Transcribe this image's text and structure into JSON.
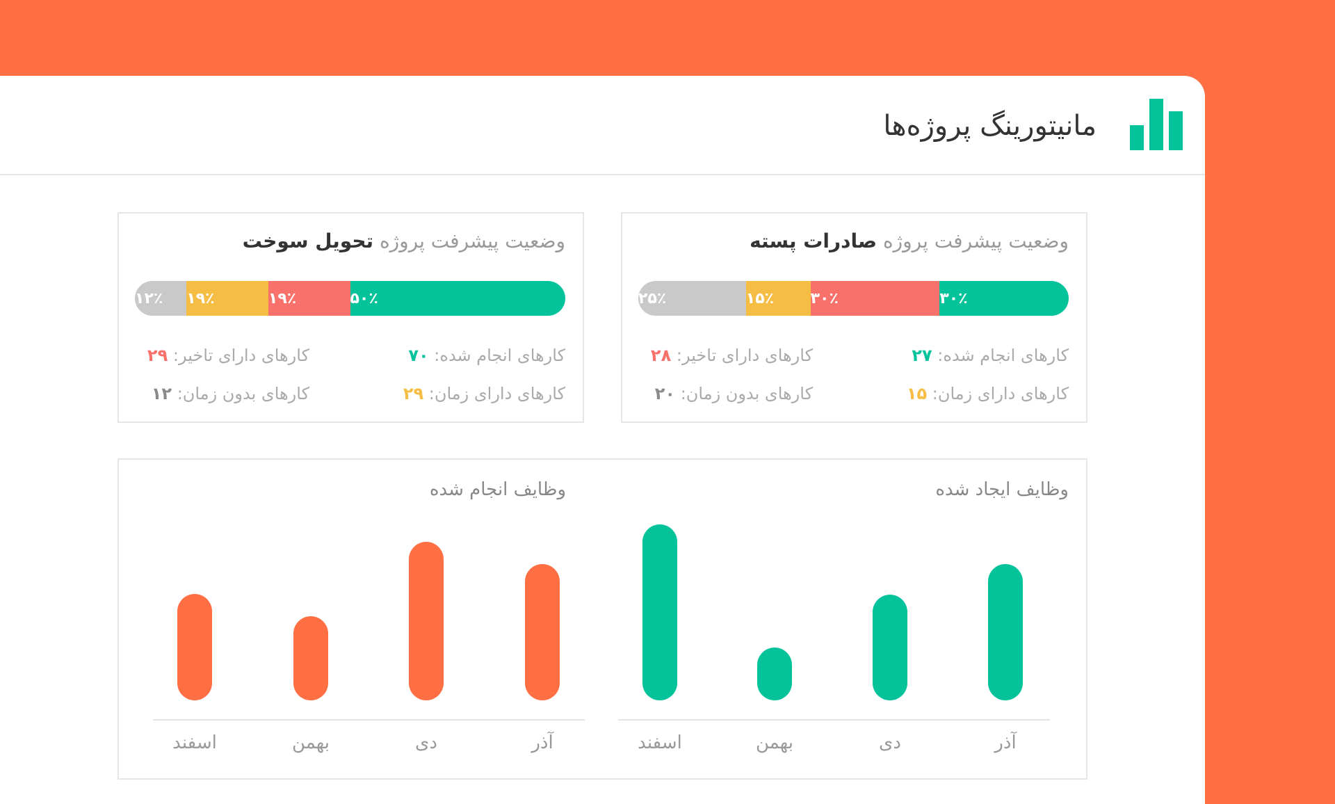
{
  "header": {
    "title": "مانیتورینگ پروژه‌ها"
  },
  "projects": [
    {
      "title_prefix": "وضعیت پیشرفت پروژه",
      "name": "صادرات پسته",
      "progress": {
        "values": [
          30,
          30,
          15,
          25
        ],
        "value_labels": [
          "۳۰٪",
          "۳۰٪",
          "۱۵٪",
          "۲۵٪"
        ],
        "colors": [
          "#04c39a",
          "#f8716a",
          "#f5bd44",
          "#c9c9c9"
        ]
      },
      "stats": [
        {
          "label": "کارهای انجام شده:",
          "value": "۲۷",
          "color": "#04c39a"
        },
        {
          "label": "کارهای دارای تاخیر:",
          "value": "۲۸",
          "color": "#f8716a"
        },
        {
          "label": "کارهای دارای زمان:",
          "value": "۱۵",
          "color": "#f5bd44"
        },
        {
          "label": "کارهای بدون زمان:",
          "value": "۲۰",
          "color": "#8a8a8a"
        }
      ]
    },
    {
      "title_prefix": "وضعیت پیشرفت پروژه",
      "name": "تحویل سوخت",
      "progress": {
        "values": [
          50,
          19,
          19,
          12
        ],
        "value_labels": [
          "۵۰٪",
          "۱۹٪",
          "۱۹٪",
          "۱۲٪"
        ],
        "colors": [
          "#04c39a",
          "#f8716a",
          "#f5bd44",
          "#c9c9c9"
        ]
      },
      "stats": [
        {
          "label": "کارهای انجام شده:",
          "value": "۷۰",
          "color": "#04c39a"
        },
        {
          "label": "کارهای دارای تاخیر:",
          "value": "۲۹",
          "color": "#f8716a"
        },
        {
          "label": "کارهای دارای زمان:",
          "value": "۲۹",
          "color": "#f5bd44"
        },
        {
          "label": "کارهای بدون زمان:",
          "value": "۱۲",
          "color": "#8a8a8a"
        }
      ]
    }
  ],
  "charts": [
    {
      "type": "bar",
      "title": "وظایف ایجاد شده",
      "categories": [
        "آذر",
        "دی",
        "بهمن",
        "اسفند"
      ],
      "values": [
        160,
        124,
        62,
        207
      ],
      "color": "#04c39a",
      "ylim": [
        0,
        210
      ]
    },
    {
      "type": "bar",
      "title": "وظایف انجام شده",
      "categories": [
        "آذر",
        "دی",
        "بهمن",
        "اسفند"
      ],
      "values": [
        160,
        186,
        99,
        125
      ],
      "color": "#ff6f43",
      "ylim": [
        0,
        210
      ]
    }
  ]
}
